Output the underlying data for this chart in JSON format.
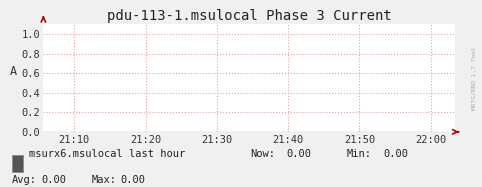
{
  "title": "pdu-113-1.msulocal Phase 3 Current",
  "ylabel": "A",
  "ylim": [
    0.0,
    1.1
  ],
  "yticks": [
    0.0,
    0.2,
    0.4,
    0.6,
    0.8,
    1.0
  ],
  "ytick_labels": [
    "0.0",
    "0.2",
    "0.4",
    "0.6",
    "0.8",
    "1.0"
  ],
  "xtick_labels": [
    "21:10",
    "21:20",
    "21:30",
    "21:40",
    "21:50",
    "22:00"
  ],
  "background_color": "#f0f0f0",
  "plot_bg_color": "#ffffff",
  "grid_color": "#e8a0a0",
  "arrow_color": "#aa0000",
  "title_color": "#222222",
  "legend_label": "msurx6.msulocal last hour",
  "legend_box_color": "#555555",
  "now_val": "0.00",
  "min_val": "0.00",
  "avg_val": "0.00",
  "max_val": "0.00",
  "font_family": "monospace",
  "title_fontsize": 10,
  "tick_fontsize": 7.5,
  "legend_fontsize": 7.5,
  "right_label": "MRTG/RRD 1.7 Tool",
  "right_label_color": "#aaaaaa"
}
